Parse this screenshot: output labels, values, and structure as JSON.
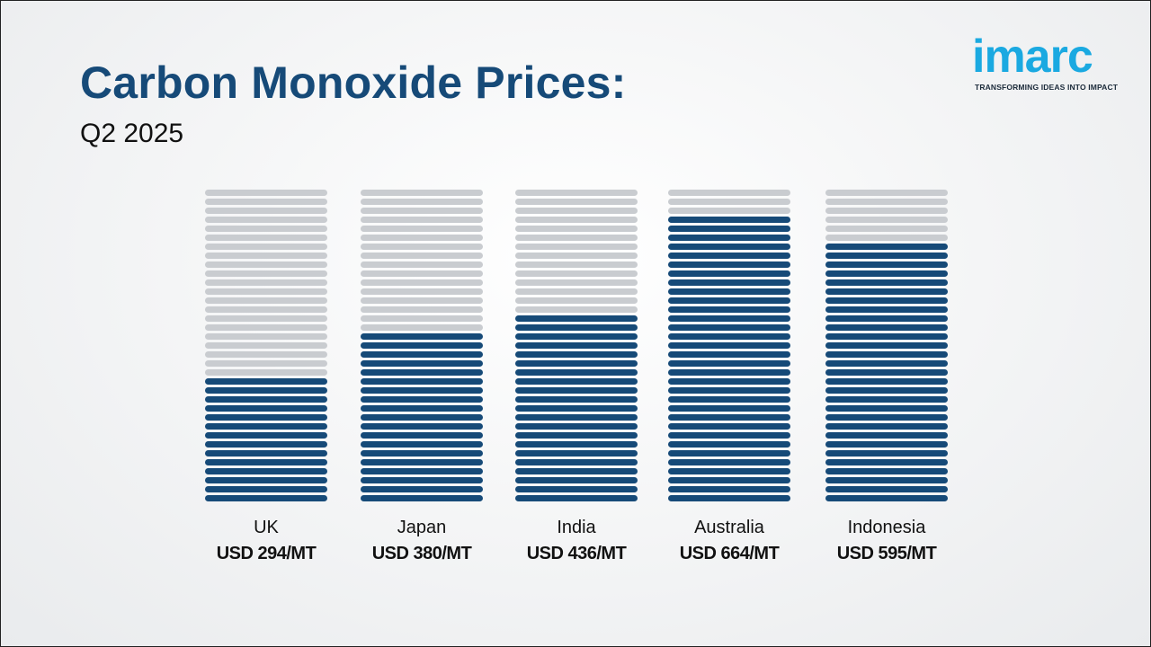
{
  "header": {
    "title": "Carbon Monoxide Prices:",
    "subtitle": "Q2 2025"
  },
  "logo": {
    "wordmark": "imarc",
    "tagline": "TRANSFORMING IDEAS INTO IMPACT"
  },
  "colors": {
    "filled": "#164a78",
    "empty": "#c9ccd0",
    "title": "#164a78",
    "logo": "#1aa9e1"
  },
  "chart_data": {
    "type": "bar",
    "title": "Carbon Monoxide Prices: Q2 2025",
    "unit": "USD/MT",
    "categories": [
      "UK",
      "Japan",
      "India",
      "Australia",
      "Indonesia"
    ],
    "values": [
      294,
      380,
      436,
      664,
      595
    ],
    "value_labels": [
      "USD 294/MT",
      "USD 380/MT",
      "USD 436/MT",
      "USD 664/MT",
      "USD 595/MT"
    ],
    "segments_total": 35,
    "segments_filled": [
      14,
      19,
      21,
      32,
      29
    ],
    "grid": false,
    "xlabel": "",
    "ylabel": ""
  }
}
